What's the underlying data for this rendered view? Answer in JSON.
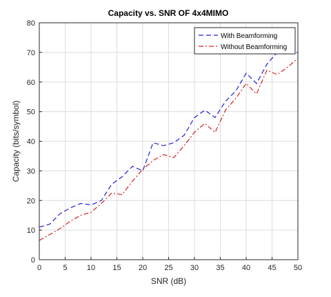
{
  "chart_data": {
    "type": "line",
    "title": "Capacity vs. SNR OF 4x4MIMO",
    "xlabel": "SNR (dB)",
    "ylabel": "Capacity (bits/symbol)",
    "xlim": [
      0,
      50
    ],
    "ylim": [
      0,
      80
    ],
    "xticks": [
      0,
      5,
      10,
      15,
      20,
      25,
      30,
      35,
      40,
      45,
      50
    ],
    "yticks": [
      0,
      10,
      20,
      30,
      40,
      50,
      60,
      70,
      80
    ],
    "grid": true,
    "legend_position": "top-right",
    "x": [
      0,
      2,
      4,
      6,
      8,
      10,
      12,
      14,
      16,
      18,
      20,
      22,
      24,
      26,
      28,
      30,
      32,
      34,
      36,
      38,
      40,
      42,
      44,
      46,
      48,
      50
    ],
    "series": [
      {
        "name": "With Beamforming",
        "color": "#1f1fd6",
        "dash": "dashed",
        "values": [
          11,
          12,
          15.5,
          17.5,
          19,
          18.5,
          20,
          25.5,
          28,
          31.5,
          30,
          39.5,
          38.5,
          39.5,
          42,
          48,
          50.5,
          48,
          53.5,
          57,
          63,
          59.5,
          66,
          70,
          70,
          70
        ]
      },
      {
        "name": "Without Beamforming",
        "color": "#d62020",
        "dash": "dashdot",
        "values": [
          6.5,
          8.5,
          10.5,
          13,
          15,
          16,
          19,
          22.5,
          22,
          26.5,
          30.5,
          33.5,
          35.5,
          34.5,
          38.5,
          43,
          46,
          43,
          50.5,
          54.5,
          59.5,
          56,
          64,
          62.5,
          65,
          68
        ]
      }
    ]
  }
}
